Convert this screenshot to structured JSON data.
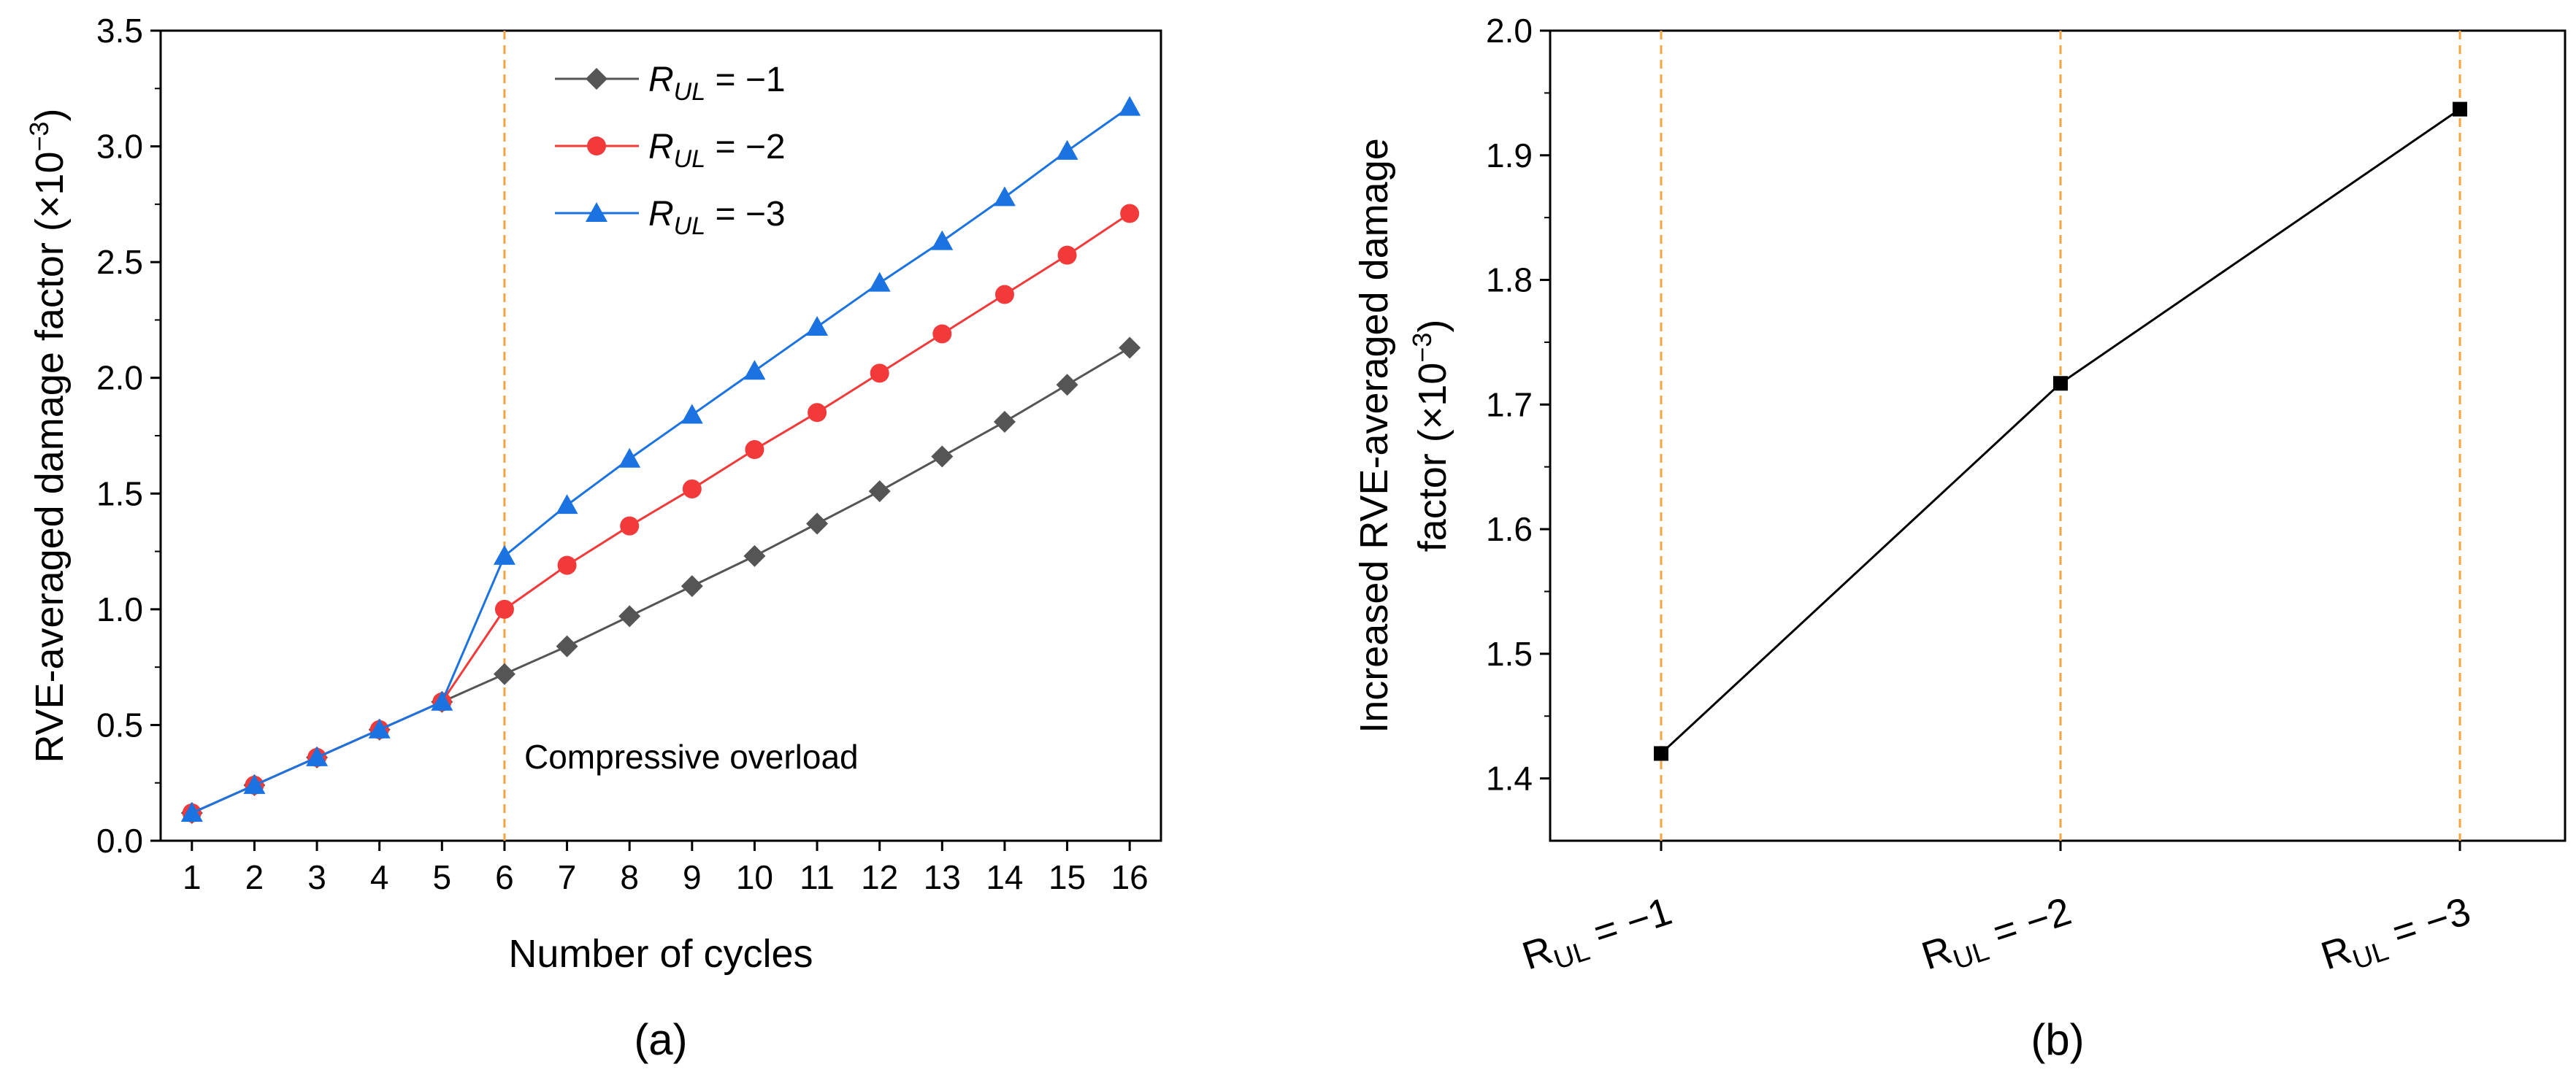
{
  "chart_data": [
    {
      "panel": "(a)",
      "type": "line",
      "xlabel": "Number of cycles",
      "ylabel": "RVE-averaged damage factor (×10",
      "ylabel_exponent": "−3",
      "ylabel_close": ")",
      "ylim": [
        0,
        3.5
      ],
      "yticks": [
        "0.0",
        "0.5",
        "1.0",
        "1.5",
        "2.0",
        "2.5",
        "3.0",
        "3.5"
      ],
      "xlim": [
        0.5,
        16.5
      ],
      "x": [
        1,
        2,
        3,
        4,
        5,
        6,
        7,
        8,
        9,
        10,
        11,
        12,
        13,
        14,
        15,
        16
      ],
      "xticks": [
        "1",
        "2",
        "3",
        "4",
        "5",
        "6",
        "7",
        "8",
        "9",
        "10",
        "11",
        "12",
        "13",
        "14",
        "15",
        "16"
      ],
      "series": [
        {
          "name": "R_UL = −1",
          "label_base": "R",
          "label_sub": "UL",
          "label_rest": " = −1",
          "color": "#555555",
          "marker": "diamond",
          "values": [
            0.12,
            0.24,
            0.36,
            0.48,
            0.6,
            0.72,
            0.84,
            0.97,
            1.1,
            1.23,
            1.37,
            1.51,
            1.66,
            1.81,
            1.97,
            2.13
          ]
        },
        {
          "name": "R_UL = −2",
          "label_base": "R",
          "label_sub": "UL",
          "label_rest": " = −2",
          "color": "#f23a3a",
          "marker": "circle",
          "values": [
            0.12,
            0.24,
            0.36,
            0.48,
            0.6,
            1.0,
            1.19,
            1.36,
            1.52,
            1.69,
            1.85,
            2.02,
            2.19,
            2.36,
            2.53,
            2.71
          ]
        },
        {
          "name": "R_UL = −3",
          "label_base": "R",
          "label_sub": "UL",
          "label_rest": " = −3",
          "color": "#1a73e0",
          "marker": "triangle",
          "values": [
            0.12,
            0.24,
            0.36,
            0.48,
            0.6,
            1.23,
            1.45,
            1.65,
            1.84,
            2.03,
            2.22,
            2.41,
            2.59,
            2.78,
            2.98,
            3.17
          ]
        }
      ],
      "vline": {
        "x": 6,
        "color": "#f5a442"
      },
      "annotation": "Compressive overload",
      "legend_position": "top-center"
    },
    {
      "panel": "(b)",
      "type": "line",
      "ylabel_line1": "Increased RVE-averaged damage",
      "ylabel_line2": "factor (×10",
      "ylabel_exponent": "−3",
      "ylabel_close": ")",
      "ylim": [
        1.35,
        2.0
      ],
      "yticks": [
        "1.4",
        "1.5",
        "1.6",
        "1.7",
        "1.8",
        "1.9",
        "2.0"
      ],
      "categories": [
        {
          "base": "R",
          "sub": "UL",
          "rest": " = −1"
        },
        {
          "base": "R",
          "sub": "UL",
          "rest": " = −2"
        },
        {
          "base": "R",
          "sub": "UL",
          "rest": " = −3"
        }
      ],
      "values": [
        1.42,
        1.717,
        1.937
      ],
      "color": "#000000",
      "marker": "square",
      "vline_color": "#f5a442"
    }
  ]
}
